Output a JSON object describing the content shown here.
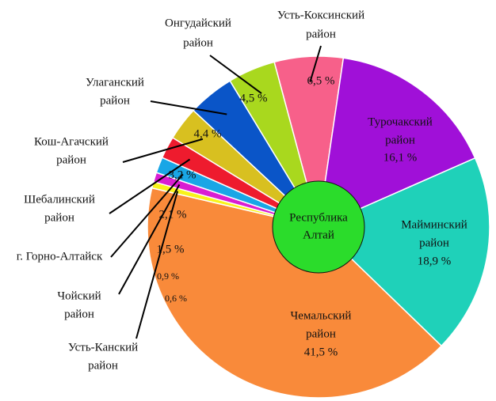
{
  "chart_data": {
    "type": "pie",
    "center_label": [
      "Республика",
      "Алтай"
    ],
    "center_color": "#2bdc2b",
    "labels": [
      [
        "Усть-Коксинский",
        "район"
      ],
      [
        "Турочакский",
        "район"
      ],
      [
        "Майминский",
        "район"
      ],
      [
        "Чемальский",
        "район"
      ],
      [
        "Усть-Канский",
        "район"
      ],
      [
        "Чойский",
        "район"
      ],
      [
        "г. Горно-Алтайск"
      ],
      [
        "Шебалинский",
        "район"
      ],
      [
        "Кош-Агачский",
        "район"
      ],
      [
        "Улаганский",
        "район"
      ],
      [
        "Онгудайский",
        "район"
      ]
    ],
    "values": [
      6.5,
      16.1,
      18.9,
      41.5,
      0.6,
      0.9,
      1.5,
      2.1,
      3.2,
      4.4,
      4.5
    ],
    "value_labels": [
      "6,5 %",
      "16,1 %",
      "18,9 %",
      "41,5 %",
      "0,6 %",
      "0,9 %",
      "1,5 %",
      "2,1 %",
      "3,2 %",
      "4,4 %",
      "4,5 %"
    ],
    "colors": [
      "#f7608a",
      "#a010d8",
      "#1fd1b9",
      "#f98a3a",
      "#f8f31a",
      "#d91ed2",
      "#19a6e6",
      "#ee1b2e",
      "#d8c020",
      "#0a55c8",
      "#a9d81e"
    ]
  }
}
